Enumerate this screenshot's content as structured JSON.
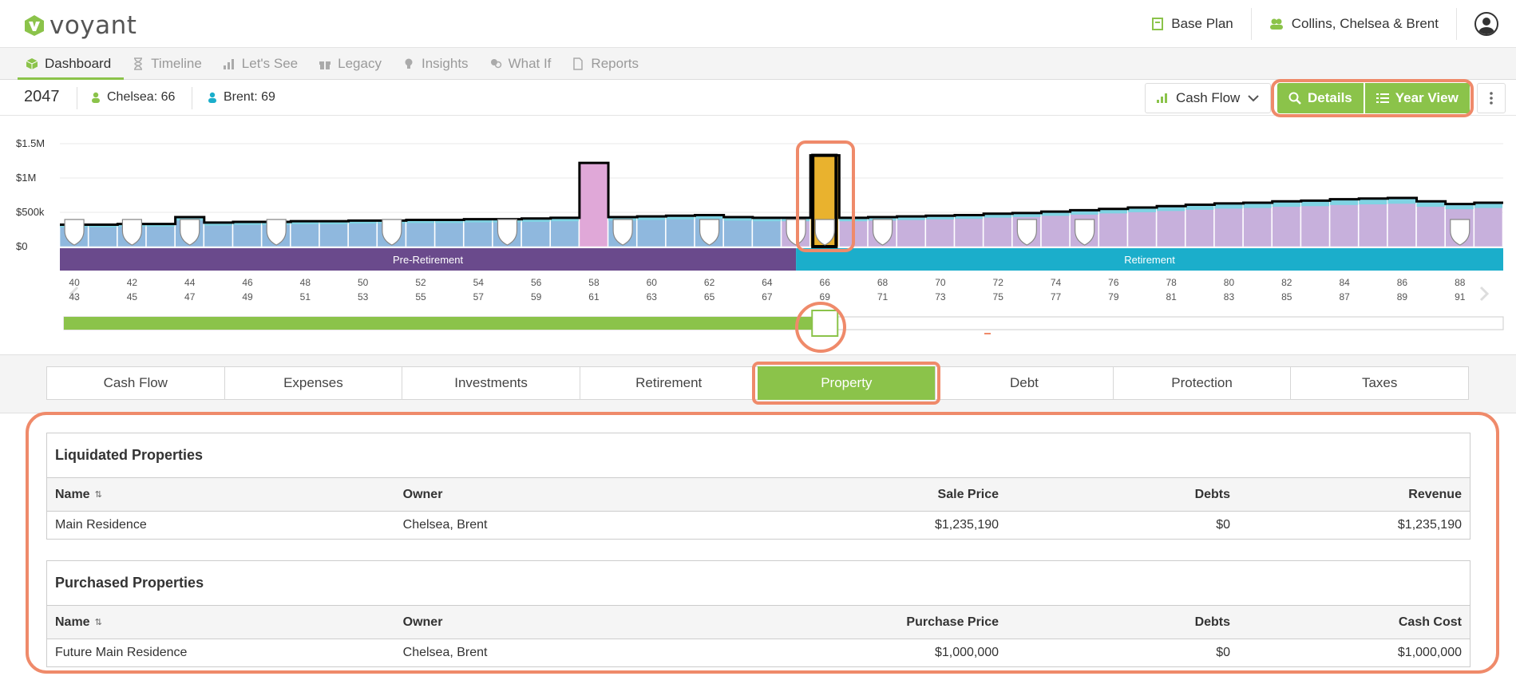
{
  "app": {
    "brand": "voyant",
    "accent": "#8bc34a"
  },
  "header": {
    "plan_label": "Base Plan",
    "client_label": "Collins, Chelsea & Brent"
  },
  "nav": {
    "tabs": [
      {
        "label": "Dashboard",
        "icon": "cube-icon",
        "active": true
      },
      {
        "label": "Timeline",
        "icon": "hourglass-icon"
      },
      {
        "label": "Let's See",
        "icon": "bar-chart-icon"
      },
      {
        "label": "Legacy",
        "icon": "gift-icon"
      },
      {
        "label": "Insights",
        "icon": "lightbulb-icon"
      },
      {
        "label": "What If",
        "icon": "people-icon"
      },
      {
        "label": "Reports",
        "icon": "pdf-icon"
      }
    ]
  },
  "info": {
    "year": "2047",
    "person1": {
      "name": "Chelsea:",
      "age": "66"
    },
    "person2": {
      "name": "Brent:",
      "age": "69"
    }
  },
  "toolbar": {
    "view_select": "Cash Flow",
    "details_label": "Details",
    "yearview_label": "Year View"
  },
  "chart": {
    "y_labels": [
      "$1.5M",
      "$1M",
      "$500k",
      "$0"
    ],
    "ages_top": [
      "40",
      "42",
      "44",
      "46",
      "48",
      "50",
      "52",
      "54",
      "56",
      "58",
      "60",
      "62",
      "64",
      "66",
      "68",
      "70",
      "72",
      "74",
      "76",
      "78",
      "80",
      "82",
      "84",
      "86",
      "88"
    ],
    "ages_bottom": [
      "43",
      "45",
      "47",
      "49",
      "51",
      "53",
      "55",
      "57",
      "59",
      "61",
      "63",
      "65",
      "67",
      "69",
      "71",
      "73",
      "75",
      "77",
      "79",
      "81",
      "83",
      "85",
      "87",
      "89",
      "91"
    ],
    "phases": {
      "pre": "Pre-Retirement",
      "post": "Retirement"
    },
    "colors": {
      "pre": "#6a4a8c",
      "post": "#1baecb",
      "blue": "#8fb8de",
      "purple": "#c7b0dc",
      "pink": "#e0a8d8",
      "gold": "#e9b22e"
    }
  },
  "chart_data": {
    "type": "bar",
    "x": [
      40,
      41,
      42,
      43,
      44,
      45,
      46,
      47,
      48,
      49,
      50,
      51,
      52,
      53,
      54,
      55,
      56,
      57,
      58,
      59,
      60,
      61,
      62,
      63,
      64,
      65,
      66,
      67,
      68,
      69,
      70,
      71,
      72,
      73,
      74,
      75,
      76,
      77,
      78,
      79,
      80,
      81,
      82,
      83,
      84,
      85,
      86,
      87,
      88,
      89
    ],
    "values": [
      0.32,
      0.32,
      0.33,
      0.33,
      0.43,
      0.35,
      0.36,
      0.36,
      0.37,
      0.37,
      0.38,
      0.38,
      0.39,
      0.39,
      0.4,
      0.4,
      0.41,
      0.42,
      1.22,
      0.43,
      0.44,
      0.45,
      0.46,
      0.43,
      0.42,
      0.42,
      1.33,
      0.42,
      0.43,
      0.44,
      0.45,
      0.46,
      0.48,
      0.49,
      0.51,
      0.53,
      0.55,
      0.57,
      0.59,
      0.61,
      0.63,
      0.64,
      0.66,
      0.67,
      0.69,
      0.7,
      0.71,
      0.66,
      0.62,
      0.64
    ],
    "ylabel": "",
    "ylim": [
      0,
      1.5
    ],
    "unit": "$M",
    "selected_age": 66,
    "retirement_start_age": 65
  },
  "tabs": [
    "Cash Flow",
    "Expenses",
    "Investments",
    "Retirement",
    "Property",
    "Debt",
    "Protection",
    "Taxes"
  ],
  "active_tab": "Property",
  "liquidated": {
    "title": "Liquidated Properties",
    "headers": {
      "name": "Name",
      "owner": "Owner",
      "price": "Sale Price",
      "debts": "Debts",
      "rev": "Revenue"
    },
    "rows": [
      {
        "name": "Main Residence",
        "owner": "Chelsea, Brent",
        "price": "$1,235,190",
        "debts": "$0",
        "rev": "$1,235,190"
      }
    ]
  },
  "purchased": {
    "title": "Purchased Properties",
    "headers": {
      "name": "Name",
      "owner": "Owner",
      "price": "Purchase Price",
      "debts": "Debts",
      "rev": "Cash Cost"
    },
    "rows": [
      {
        "name": "Future Main Residence",
        "owner": "Chelsea, Brent",
        "price": "$1,000,000",
        "debts": "$0",
        "rev": "$1,000,000"
      }
    ]
  }
}
